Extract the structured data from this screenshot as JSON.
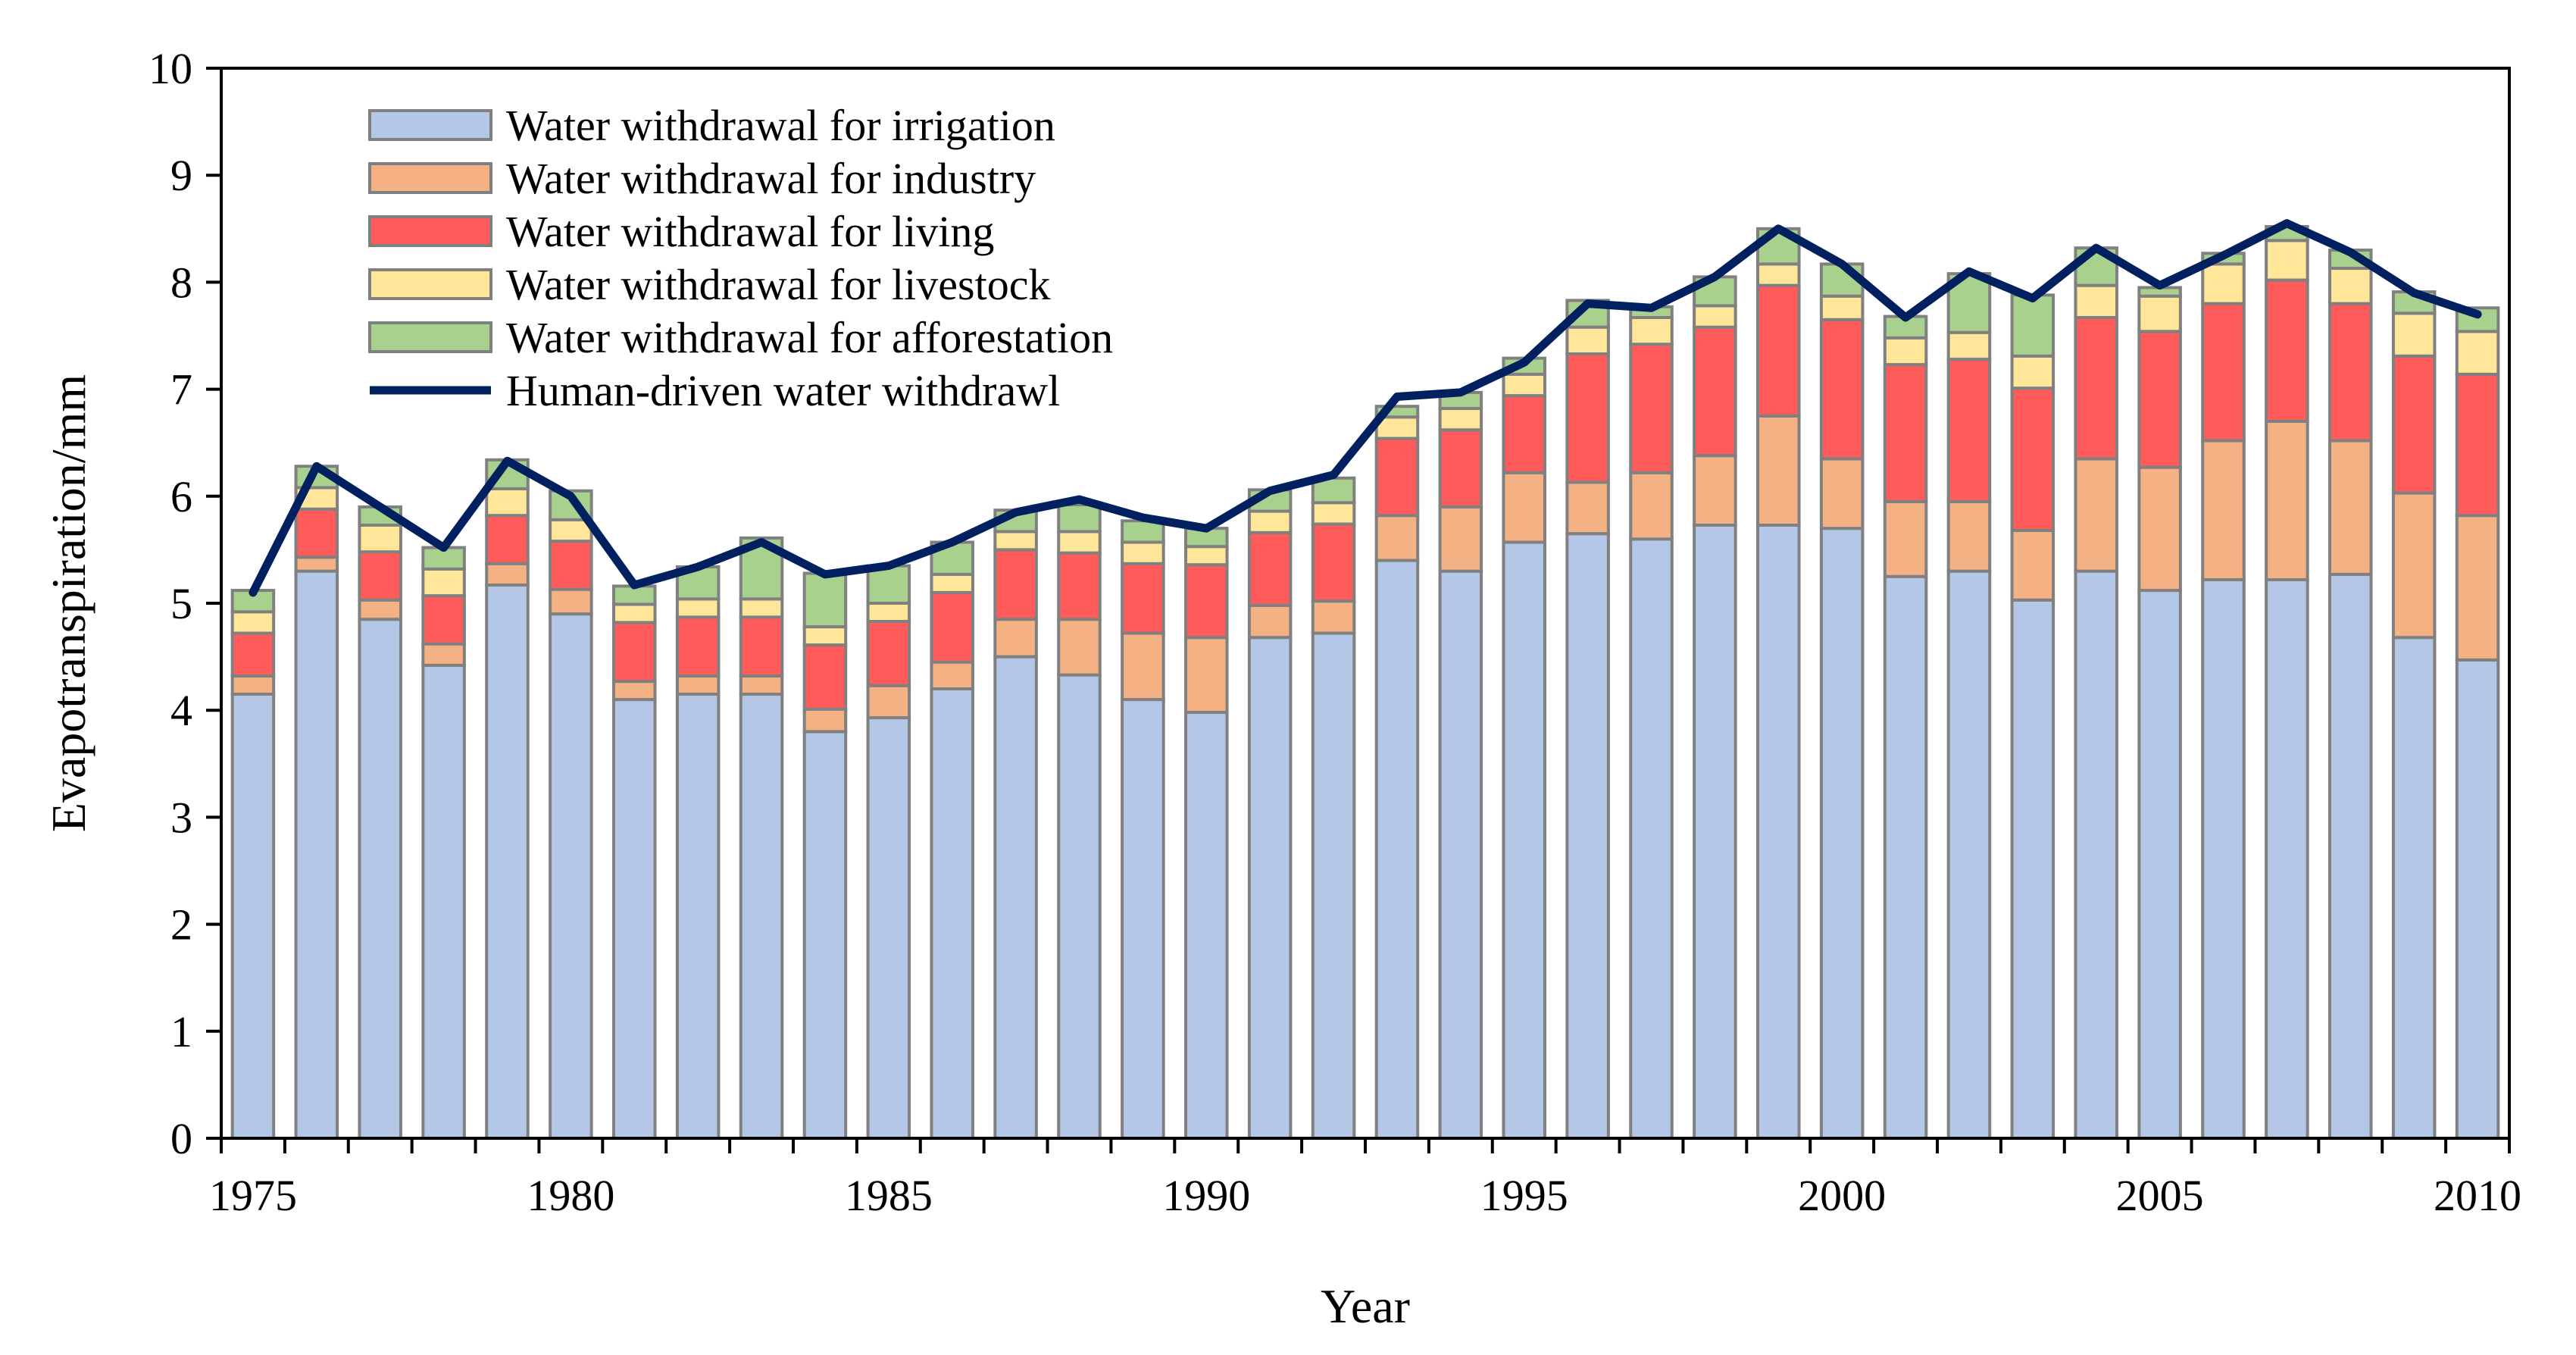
{
  "chart_data": {
    "type": "bar",
    "stacked": true,
    "title": "",
    "xlabel": "Year",
    "ylabel": "Evapotranspiration/mm",
    "ylim": [
      0,
      10
    ],
    "yticks": [
      "0",
      "1",
      "2",
      "3",
      "4",
      "5",
      "6",
      "7",
      "8",
      "9",
      "10"
    ],
    "xticks": [
      "1975",
      "1980",
      "1985",
      "1990",
      "1995",
      "2000",
      "2005",
      "2010"
    ],
    "categories": [
      1975,
      1976,
      1977,
      1978,
      1979,
      1980,
      1981,
      1982,
      1983,
      1984,
      1985,
      1986,
      1987,
      1988,
      1989,
      1990,
      1991,
      1992,
      1993,
      1994,
      1995,
      1996,
      1997,
      1998,
      1999,
      2000,
      2001,
      2002,
      2003,
      2004,
      2005,
      2006,
      2007,
      2008,
      2009,
      2010
    ],
    "legend_position": "top-left",
    "series": [
      {
        "name": "Water withdrawal for irrigation",
        "color": "#b4c7e7",
        "values": [
          4.15,
          5.3,
          4.85,
          4.42,
          5.17,
          4.9,
          4.1,
          4.15,
          4.15,
          3.8,
          3.93,
          4.2,
          4.5,
          4.33,
          4.1,
          3.98,
          4.68,
          4.72,
          5.4,
          5.3,
          5.57,
          5.65,
          5.6,
          5.73,
          5.73,
          5.7,
          5.25,
          5.3,
          5.03,
          5.3,
          5.12,
          5.22,
          5.22,
          5.27,
          4.68,
          4.47
        ]
      },
      {
        "name": "Water withdrawal for industry",
        "color": "#f4b183",
        "values": [
          0.17,
          0.13,
          0.18,
          0.2,
          0.2,
          0.23,
          0.17,
          0.17,
          0.17,
          0.21,
          0.3,
          0.25,
          0.35,
          0.52,
          0.62,
          0.7,
          0.3,
          0.3,
          0.42,
          0.6,
          0.65,
          0.48,
          0.62,
          0.65,
          1.02,
          0.65,
          0.7,
          0.65,
          0.65,
          1.05,
          1.15,
          1.3,
          1.48,
          1.25,
          1.35,
          1.35
        ]
      },
      {
        "name": "Water withdrawal for living",
        "color": "#ff5b5b",
        "values": [
          0.4,
          0.45,
          0.45,
          0.45,
          0.45,
          0.45,
          0.55,
          0.55,
          0.55,
          0.6,
          0.6,
          0.65,
          0.65,
          0.62,
          0.65,
          0.68,
          0.68,
          0.72,
          0.72,
          0.72,
          0.72,
          1.2,
          1.2,
          1.2,
          1.22,
          1.3,
          1.28,
          1.33,
          1.33,
          1.32,
          1.27,
          1.28,
          1.32,
          1.28,
          1.28,
          1.32
        ]
      },
      {
        "name": "Water withdrawal for livestock",
        "color": "#ffe699",
        "values": [
          0.2,
          0.2,
          0.25,
          0.25,
          0.25,
          0.2,
          0.17,
          0.17,
          0.17,
          0.17,
          0.17,
          0.17,
          0.17,
          0.2,
          0.2,
          0.17,
          0.2,
          0.2,
          0.2,
          0.2,
          0.2,
          0.25,
          0.25,
          0.2,
          0.2,
          0.22,
          0.25,
          0.25,
          0.3,
          0.3,
          0.33,
          0.37,
          0.37,
          0.33,
          0.4,
          0.4
        ]
      },
      {
        "name": "Water withdrawal for afforestation",
        "color": "#a9d18e",
        "values": [
          0.2,
          0.2,
          0.17,
          0.2,
          0.27,
          0.27,
          0.17,
          0.3,
          0.57,
          0.5,
          0.35,
          0.3,
          0.2,
          0.25,
          0.2,
          0.17,
          0.2,
          0.23,
          0.1,
          0.15,
          0.15,
          0.25,
          0.1,
          0.27,
          0.33,
          0.3,
          0.2,
          0.55,
          0.57,
          0.35,
          0.08,
          0.1,
          0.13,
          0.17,
          0.2,
          0.22
        ]
      }
    ],
    "line": {
      "name": "Human-driven water withdrawl",
      "color": "#002060",
      "values": [
        5.1,
        6.28,
        5.9,
        5.52,
        6.33,
        6.0,
        5.17,
        5.34,
        5.57,
        5.27,
        5.35,
        5.57,
        5.85,
        5.97,
        5.8,
        5.7,
        6.05,
        6.2,
        6.93,
        6.97,
        7.25,
        7.8,
        7.76,
        8.05,
        8.5,
        8.17,
        7.67,
        8.1,
        7.85,
        8.32,
        7.97,
        8.25,
        8.55,
        8.28,
        7.9,
        7.7
      ]
    }
  }
}
